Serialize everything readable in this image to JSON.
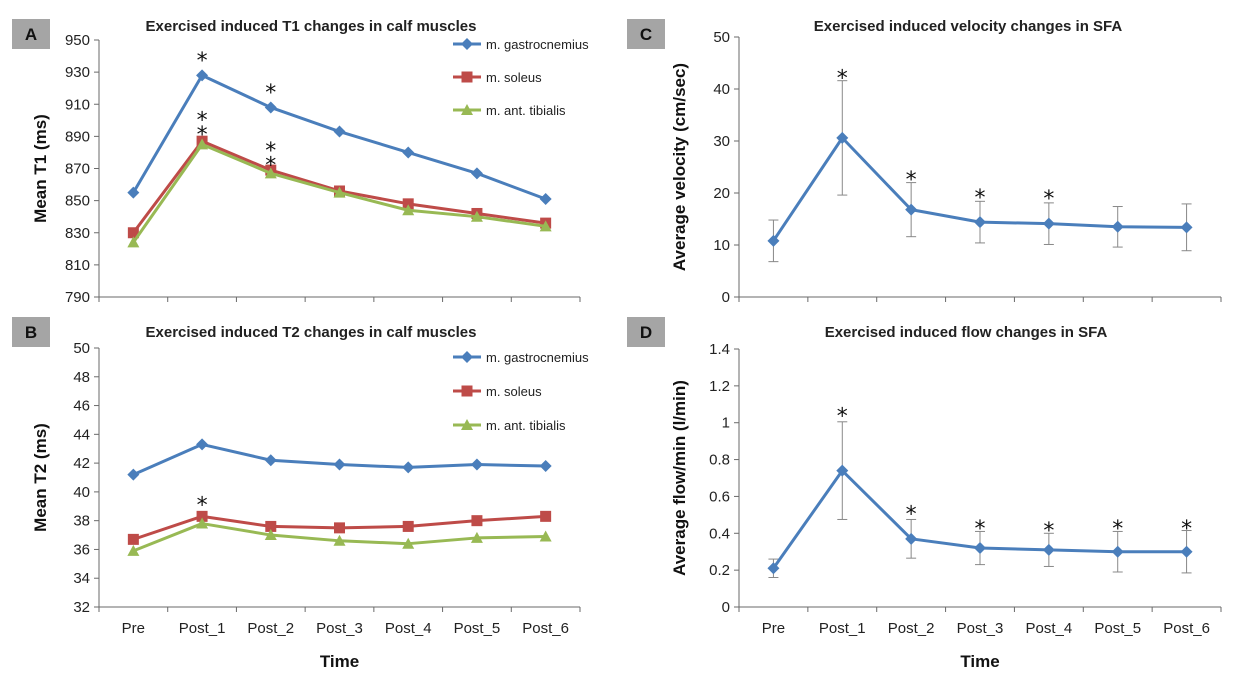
{
  "chart_data": [
    {
      "id": "A",
      "panel_letter": "A",
      "type": "line",
      "title": "Exercised induced T1 changes in calf muscles",
      "xlabel": "",
      "ylabel": "Mean T1 (ms)",
      "categories": [
        "Pre",
        "Post_1",
        "Post_2",
        "Post_3",
        "Post_4",
        "Post_5",
        "Post_6"
      ],
      "show_x_tick_labels": false,
      "ylim": [
        790,
        950
      ],
      "yticks": [
        790,
        810,
        830,
        850,
        870,
        890,
        910,
        930,
        950
      ],
      "grid": false,
      "legend": "top-right",
      "series": [
        {
          "name": "m. gastrocnemius",
          "color": "#4a7ebb",
          "marker": "diamond",
          "values": [
            855,
            928,
            908,
            893,
            880,
            867,
            851
          ]
        },
        {
          "name": "m. soleus",
          "color": "#be4b48",
          "marker": "square",
          "values": [
            830,
            887,
            869,
            856,
            848,
            842,
            836
          ]
        },
        {
          "name": "m. ant. tibialis",
          "color": "#98b954",
          "marker": "triangle",
          "values": [
            824,
            885,
            867,
            855,
            844,
            840,
            834
          ]
        }
      ],
      "annotations": [
        {
          "text": "*",
          "category": "Post_1",
          "y": 940
        },
        {
          "text": "*",
          "category": "Post_2",
          "y": 920
        },
        {
          "text": "*",
          "category": "Post_1",
          "y": 903
        },
        {
          "text": "*",
          "category": "Post_1",
          "y": 894
        },
        {
          "text": "*",
          "category": "Post_2",
          "y": 884
        },
        {
          "text": "*",
          "category": "Post_2",
          "y": 875
        }
      ]
    },
    {
      "id": "B",
      "panel_letter": "B",
      "type": "line",
      "title": "Exercised induced T2 changes in calf muscles",
      "xlabel": "Time",
      "ylabel": "Mean T2 (ms)",
      "categories": [
        "Pre",
        "Post_1",
        "Post_2",
        "Post_3",
        "Post_4",
        "Post_5",
        "Post_6"
      ],
      "show_x_tick_labels": true,
      "ylim": [
        32,
        50
      ],
      "yticks": [
        32,
        34,
        36,
        38,
        40,
        42,
        44,
        46,
        48,
        50
      ],
      "grid": false,
      "legend": "top-right",
      "series": [
        {
          "name": "m. gastrocnemius",
          "color": "#4a7ebb",
          "marker": "diamond",
          "values": [
            41.2,
            43.3,
            42.2,
            41.9,
            41.7,
            41.9,
            41.8
          ]
        },
        {
          "name": "m. soleus",
          "color": "#be4b48",
          "marker": "square",
          "values": [
            36.7,
            38.3,
            37.6,
            37.5,
            37.6,
            38.0,
            38.3
          ]
        },
        {
          "name": "m. ant. tibialis",
          "color": "#98b954",
          "marker": "triangle",
          "values": [
            35.9,
            37.8,
            37.0,
            36.6,
            36.4,
            36.8,
            36.9
          ]
        }
      ],
      "annotations": [
        {
          "text": "*",
          "category": "Post_1",
          "y": 39.4
        }
      ]
    },
    {
      "id": "C",
      "panel_letter": "C",
      "type": "line",
      "title": "Exercised induced velocity changes in SFA",
      "xlabel": "",
      "ylabel": "Average velocity (cm/sec)",
      "categories": [
        "Pre",
        "Post_1",
        "Post_2",
        "Post_3",
        "Post_4",
        "Post_5",
        "Post_6"
      ],
      "show_x_tick_labels": false,
      "ylim": [
        0,
        50
      ],
      "yticks": [
        0,
        10,
        20,
        30,
        40,
        50
      ],
      "grid": false,
      "series": [
        {
          "color": "#4a7ebb",
          "marker": "diamond",
          "values": [
            10.8,
            30.6,
            16.8,
            14.4,
            14.1,
            13.5,
            13.4
          ],
          "error": [
            4.0,
            11.0,
            5.2,
            4.0,
            4.0,
            3.9,
            4.5
          ]
        }
      ],
      "annotations": [
        {
          "text": "*",
          "category": "Post_1",
          "y": 43
        },
        {
          "text": "*",
          "category": "Post_2",
          "y": 23.5
        },
        {
          "text": "*",
          "category": "Post_3",
          "y": 20
        },
        {
          "text": "*",
          "category": "Post_4",
          "y": 19.8
        }
      ]
    },
    {
      "id": "D",
      "panel_letter": "D",
      "type": "line",
      "title": "Exercised induced flow changes in SFA",
      "xlabel": "Time",
      "ylabel": "Average flow/min (l/min)",
      "categories": [
        "Pre",
        "Post_1",
        "Post_2",
        "Post_3",
        "Post_4",
        "Post_5",
        "Post_6"
      ],
      "show_x_tick_labels": true,
      "ylim": [
        0,
        1.4
      ],
      "yticks": [
        "0",
        "0.2",
        "0.4",
        "0.6",
        "0.8",
        "1",
        "1.2",
        "1.4"
      ],
      "grid": false,
      "series": [
        {
          "color": "#4a7ebb",
          "marker": "diamond",
          "values": [
            0.21,
            0.74,
            0.37,
            0.32,
            0.31,
            0.3,
            0.3
          ],
          "error": [
            0.05,
            0.265,
            0.105,
            0.09,
            0.09,
            0.11,
            0.115
          ]
        }
      ],
      "annotations": [
        {
          "text": "*",
          "category": "Post_1",
          "y": 1.06
        },
        {
          "text": "*",
          "category": "Post_2",
          "y": 0.53
        },
        {
          "text": "*",
          "category": "Post_3",
          "y": 0.45
        },
        {
          "text": "*",
          "category": "Post_4",
          "y": 0.44
        },
        {
          "text": "*",
          "category": "Post_5",
          "y": 0.45
        },
        {
          "text": "*",
          "category": "Post_6",
          "y": 0.45
        }
      ]
    }
  ],
  "colors": {
    "badge_background": "#a5a5a5",
    "axis": "#6a6a6a",
    "text": "#222222"
  }
}
